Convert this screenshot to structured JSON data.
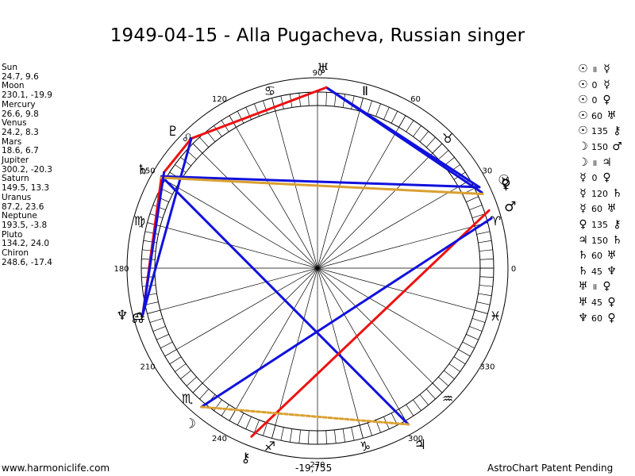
{
  "title": "1949-04-15 - Alla Pugacheva, Russian singer",
  "footer": {
    "site": "www.harmoniclife.com",
    "value": "-19,755",
    "notice": "AstroChart Patent Pending"
  },
  "chart_data": {
    "type": "diagram",
    "degree_labels": [
      "0",
      "30",
      "60",
      "90",
      "120",
      "150",
      "180",
      "210",
      "240",
      "270",
      "300",
      "330"
    ],
    "signs": [
      {
        "name": "aries",
        "glyph": "♈",
        "start": 0
      },
      {
        "name": "taurus",
        "glyph": "♉",
        "start": 30
      },
      {
        "name": "gemini",
        "glyph": "Ⅱ",
        "start": 60
      },
      {
        "name": "cancer",
        "glyph": "♋",
        "start": 90
      },
      {
        "name": "leo",
        "glyph": "♌",
        "start": 120
      },
      {
        "name": "virgo",
        "glyph": "♍",
        "start": 150
      },
      {
        "name": "libra",
        "glyph": "♎",
        "start": 180
      },
      {
        "name": "scorpio",
        "glyph": "♏",
        "start": 210
      },
      {
        "name": "sagittarius",
        "glyph": "♐",
        "start": 240
      },
      {
        "name": "capricorn",
        "glyph": "♑",
        "start": 270
      },
      {
        "name": "aquarius",
        "glyph": "♒",
        "start": 300
      },
      {
        "name": "pisces",
        "glyph": "♓",
        "start": 330
      }
    ],
    "planets": [
      {
        "name": "Sun",
        "glyph": "☉",
        "lon": 24.7,
        "lat": 9.6,
        "label": "24.7, 9.6"
      },
      {
        "name": "Moon",
        "glyph": "☽",
        "lon": 230.1,
        "lat": -19.9,
        "label": "230.1, -19.9"
      },
      {
        "name": "Mercury",
        "glyph": "☿",
        "lon": 26.6,
        "lat": 9.8,
        "label": "26.6, 9.8"
      },
      {
        "name": "Venus",
        "glyph": "♀",
        "lon": 24.2,
        "lat": 8.3,
        "label": "24.2, 8.3"
      },
      {
        "name": "Mars",
        "glyph": "♂",
        "lon": 18.6,
        "lat": 6.7,
        "label": "18.6, 6.7"
      },
      {
        "name": "Jupiter",
        "glyph": "♃",
        "lon": 300.2,
        "lat": -20.3,
        "label": "300.2, -20.3"
      },
      {
        "name": "Saturn",
        "glyph": "♄",
        "lon": 149.5,
        "lat": 13.3,
        "label": "149.5, 13.3"
      },
      {
        "name": "Uranus",
        "glyph": "♅",
        "lon": 87.2,
        "lat": 23.6,
        "label": "87.2, 23.6"
      },
      {
        "name": "Neptune",
        "glyph": "♆",
        "lon": 193.5,
        "lat": -3.8,
        "label": "193.5, -3.8"
      },
      {
        "name": "Pluto",
        "glyph": "♇",
        "lon": 134.2,
        "lat": 24.0,
        "label": "134.2, 24.0"
      },
      {
        "name": "Chiron",
        "glyph": "⚷",
        "lon": 248.6,
        "lat": -17.4,
        "label": "248.6, -17.4"
      },
      {
        "name": "Node",
        "glyph": "☊",
        "lon": 195.0,
        "lat": 0,
        "label": ""
      }
    ],
    "aspects": [
      {
        "p1": "☉",
        "symbol": "॥",
        "p2": "☿"
      },
      {
        "p1": "☉",
        "symbol": "0",
        "p2": "☿"
      },
      {
        "p1": "☉",
        "symbol": "0",
        "p2": "♀"
      },
      {
        "p1": "☉",
        "symbol": "60",
        "p2": "♅"
      },
      {
        "p1": "☉",
        "symbol": "135",
        "p2": "⚷"
      },
      {
        "p1": "☽",
        "symbol": "150",
        "p2": "♂"
      },
      {
        "p1": "☽",
        "symbol": "॥",
        "p2": "♃"
      },
      {
        "p1": "☿",
        "symbol": "0",
        "p2": "♀"
      },
      {
        "p1": "☿",
        "symbol": "120",
        "p2": "♄"
      },
      {
        "p1": "☿",
        "symbol": "60",
        "p2": "♅"
      },
      {
        "p1": "♀",
        "symbol": "135",
        "p2": "⚷"
      },
      {
        "p1": "♃",
        "symbol": "150",
        "p2": "♄"
      },
      {
        "p1": "♄",
        "symbol": "60",
        "p2": "♅"
      },
      {
        "p1": "♄",
        "symbol": "45",
        "p2": "♆"
      },
      {
        "p1": "♅",
        "symbol": "॥",
        "p2": "♀"
      },
      {
        "p1": "♅",
        "symbol": "45",
        "p2": "♀"
      },
      {
        "p1": "♆",
        "symbol": "60",
        "p2": "♀"
      }
    ],
    "aspect_lines": [
      {
        "from": 87.2,
        "to": 24.7,
        "kind": "blue"
      },
      {
        "from": 87.2,
        "to": 26.6,
        "kind": "blue"
      },
      {
        "from": 87.2,
        "to": 134.2,
        "kind": "red"
      },
      {
        "from": 134.2,
        "to": 148.0,
        "kind": "red"
      },
      {
        "from": 134.2,
        "to": 195.0,
        "kind": "blue"
      },
      {
        "from": 149.5,
        "to": 26.6,
        "kind": "blue"
      },
      {
        "from": 149.5,
        "to": 195.0,
        "kind": "red"
      },
      {
        "from": 149.5,
        "to": 300.2,
        "kind": "blue"
      },
      {
        "from": 150.0,
        "to": 24.2,
        "kind": "gold"
      },
      {
        "from": 195.0,
        "to": 148.0,
        "kind": "blue"
      },
      {
        "from": 18.6,
        "to": 248.6,
        "kind": "red"
      },
      {
        "from": 16.0,
        "to": 230.1,
        "kind": "blue"
      },
      {
        "from": 230.1,
        "to": 300.2,
        "kind": "gold-dashed"
      }
    ],
    "line_colors": {
      "red": "#ee1111",
      "blue": "#1111dd",
      "gold": "#daa030"
    }
  }
}
